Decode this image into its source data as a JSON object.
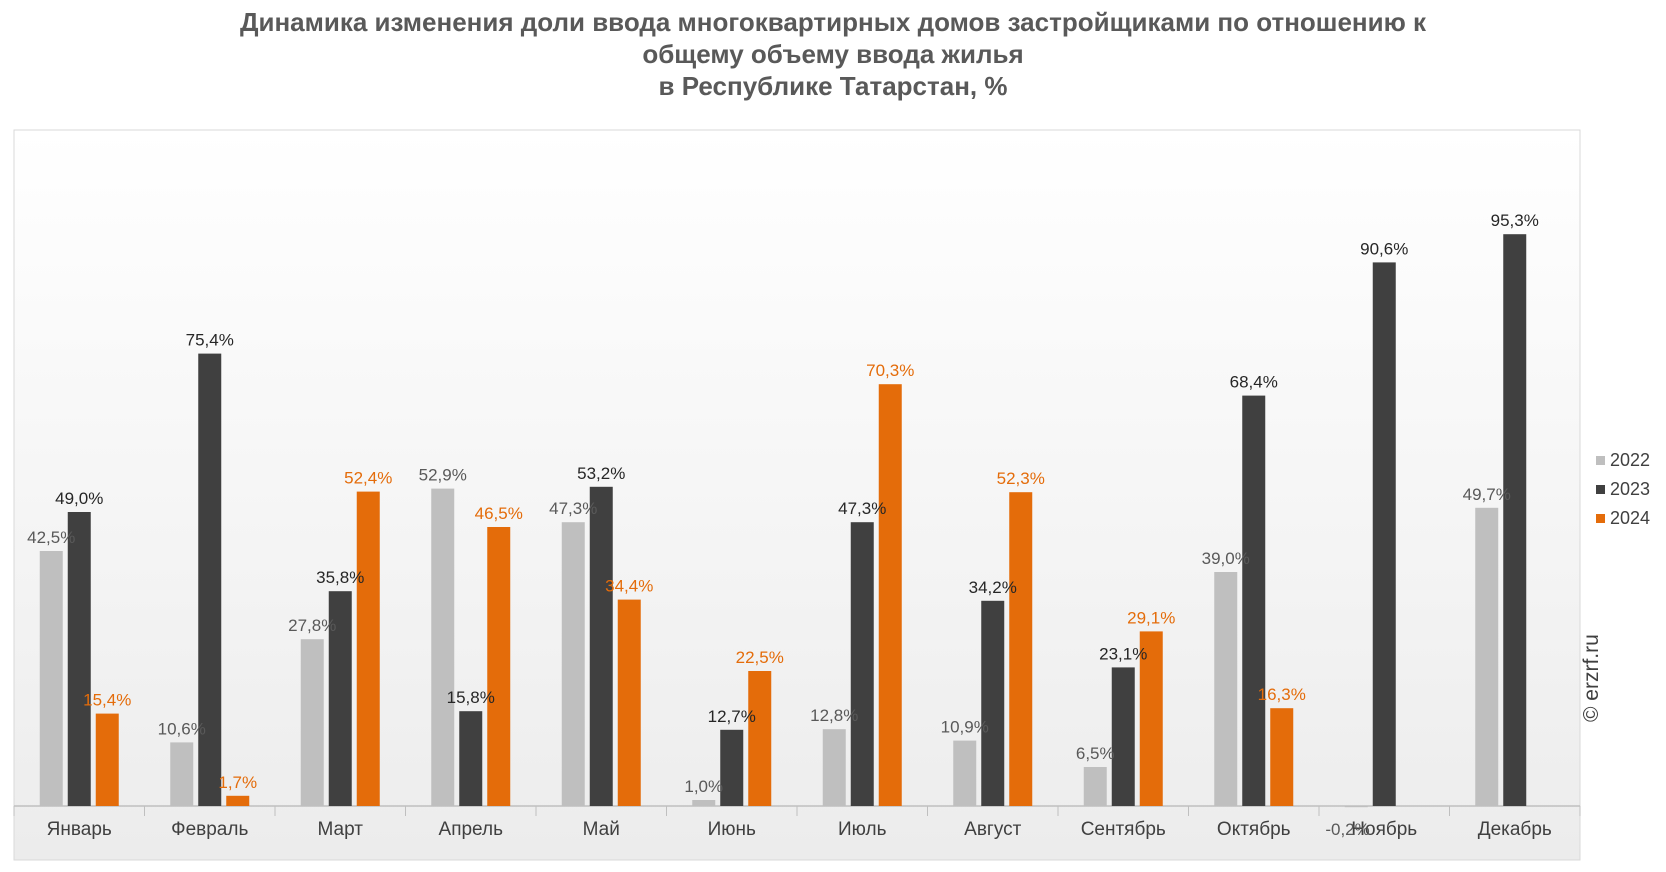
{
  "chart_data": {
    "type": "bar",
    "title_lines": [
      "Динамика изменения доли ввода многоквартирных домов застройщиками по отношению к",
      "общему объему ввода жилья",
      "в Республике Татарстан, %"
    ],
    "categories": [
      "Январь",
      "Февраль",
      "Март",
      "Апрель",
      "Май",
      "Июнь",
      "Июль",
      "Август",
      "Сентябрь",
      "Октябрь",
      "Ноябрь",
      "Декабрь"
    ],
    "series": [
      {
        "name": "2022",
        "color": "#bfbfbf",
        "label_color": "#595959",
        "values": [
          42.5,
          10.6,
          27.8,
          52.9,
          47.3,
          1.0,
          12.8,
          10.9,
          6.5,
          39.0,
          -0.2,
          49.7
        ],
        "labels": [
          "42,5%",
          "10,6%",
          "27,8%",
          "52,9%",
          "47,3%",
          "1,0%",
          "12,8%",
          "10,9%",
          "6,5%",
          "39,0%",
          "-0,2%",
          "49,7%"
        ]
      },
      {
        "name": "2023",
        "color": "#404040",
        "label_color": "#262626",
        "values": [
          49.0,
          75.4,
          35.8,
          15.8,
          53.2,
          12.7,
          47.3,
          34.2,
          23.1,
          68.4,
          90.6,
          95.3
        ],
        "labels": [
          "49,0%",
          "75,4%",
          "35,8%",
          "15,8%",
          "53,2%",
          "12,7%",
          "47,3%",
          "34,2%",
          "23,1%",
          "68,4%",
          "90,6%",
          "95,3%"
        ]
      },
      {
        "name": "2024",
        "color": "#e46c0a",
        "label_color": "#e46c0a",
        "values": [
          15.4,
          1.7,
          52.4,
          46.5,
          34.4,
          22.5,
          70.3,
          52.3,
          29.1,
          16.3,
          null,
          null
        ],
        "labels": [
          "15,4%",
          "1,7%",
          "52,4%",
          "46,5%",
          "34,4%",
          "22,5%",
          "70,3%",
          "52,3%",
          "29,1%",
          "16,3%",
          null,
          null
        ]
      }
    ],
    "ylim": [
      0,
      100
    ],
    "legend_position": "right",
    "grid": false
  },
  "watermark": "© erzrf.ru"
}
